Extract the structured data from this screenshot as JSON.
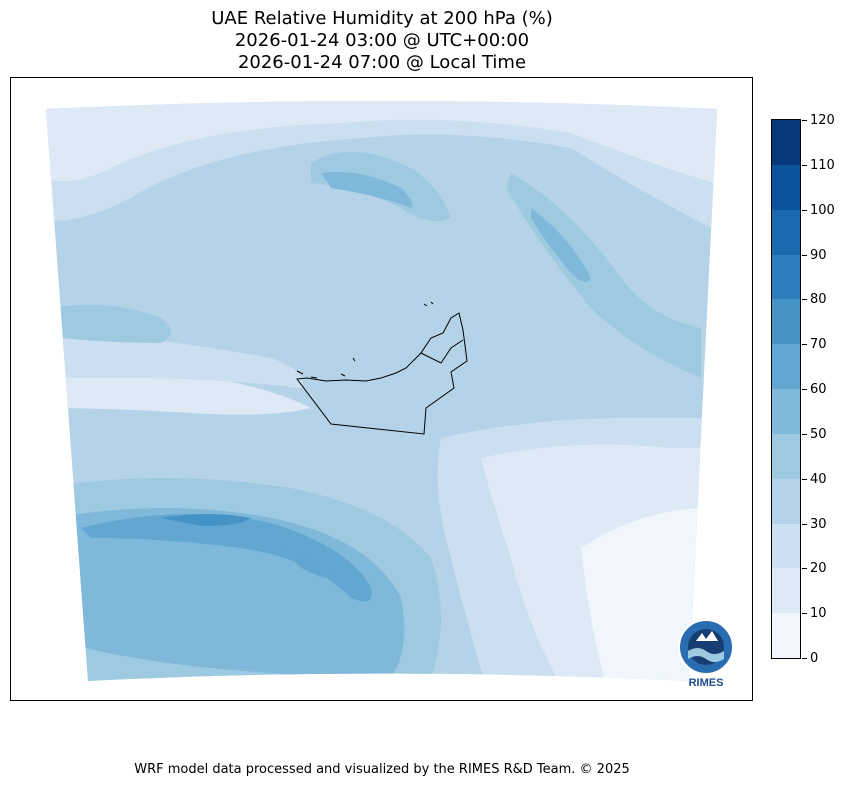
{
  "title": {
    "line1": "UAE Relative Humidity at 200 hPa (%)",
    "line2": "2026-01-24 03:00 @ UTC+00:00",
    "line3": "2026-01-24 07:00 @ Local Time"
  },
  "colorbar": {
    "levels": [
      0,
      10,
      20,
      30,
      40,
      50,
      60,
      70,
      80,
      90,
      100,
      110,
      120
    ],
    "tick_labels": [
      "0",
      "10",
      "20",
      "30",
      "40",
      "50",
      "60",
      "70",
      "80",
      "90",
      "100",
      "110",
      "120"
    ],
    "colors": [
      "#f0f6fc",
      "#dee9f6",
      "#cbdff1",
      "#b5d3e8",
      "#9ecae1",
      "#80b8da",
      "#61a7d2",
      "#4592c6",
      "#2e7dbc",
      "#1b69af",
      "#0c539d",
      "#083a7b"
    ]
  },
  "logo": {
    "text": "RIMES",
    "icon": "rimes-logo-icon"
  },
  "footer": "WRF model data processed and visualized by the RIMES R&D Team. © 2025"
}
